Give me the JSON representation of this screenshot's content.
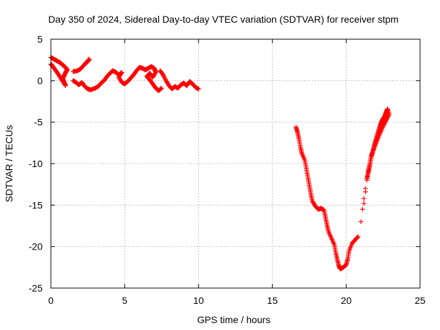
{
  "chart_data": {
    "type": "scatter",
    "title": "Day 350 of 2024, Sidereal Day-to-day VTEC variation (SDTVAR) for receiver stpm",
    "xlabel": "GPS time / hours",
    "ylabel": "SDTVAR / TECUs",
    "xlim": [
      0,
      25
    ],
    "ylim": [
      -25,
      5
    ],
    "xticks": [
      0,
      5,
      10,
      15,
      20,
      25
    ],
    "yticks": [
      -25,
      -20,
      -15,
      -10,
      -5,
      0,
      5
    ],
    "grid": true,
    "marker": "+",
    "colors": {
      "series": "#ff0000",
      "grid": "#a0a0a0",
      "axis": "#000000"
    },
    "series": [
      {
        "name": "SDTVAR",
        "points": [
          [
            0.0,
            2.8
          ],
          [
            0.2,
            2.6
          ],
          [
            0.4,
            2.4
          ],
          [
            0.6,
            2.2
          ],
          [
            0.8,
            1.9
          ],
          [
            1.0,
            1.6
          ],
          [
            1.1,
            1.3
          ],
          [
            1.0,
            1.0
          ],
          [
            0.9,
            0.6
          ],
          [
            0.8,
            0.3
          ],
          [
            0.9,
            -0.2
          ],
          [
            1.0,
            -0.6
          ],
          [
            0.9,
            -0.3
          ],
          [
            0.7,
            0.2
          ],
          [
            0.5,
            0.8
          ],
          [
            0.3,
            1.3
          ],
          [
            0.1,
            1.8
          ],
          [
            0.0,
            2.0
          ],
          [
            1.5,
            1.1
          ],
          [
            1.8,
            1.2
          ],
          [
            2.0,
            1.4
          ],
          [
            2.2,
            1.8
          ],
          [
            2.4,
            2.2
          ],
          [
            2.6,
            2.6
          ],
          [
            2.5,
            2.3
          ],
          [
            2.3,
            2.0
          ],
          [
            1.5,
            0.0
          ],
          [
            1.7,
            -0.2
          ],
          [
            1.9,
            -0.5
          ],
          [
            2.1,
            -0.2
          ],
          [
            2.3,
            -0.7
          ],
          [
            2.5,
            -1.0
          ],
          [
            2.7,
            -1.1
          ],
          [
            3.0,
            -0.9
          ],
          [
            3.2,
            -0.7
          ],
          [
            3.4,
            -0.3
          ],
          [
            3.6,
            0.0
          ],
          [
            3.8,
            0.5
          ],
          [
            4.0,
            0.9
          ],
          [
            4.2,
            1.2
          ],
          [
            4.4,
            1.0
          ],
          [
            4.6,
            0.7
          ],
          [
            4.8,
            1.0
          ],
          [
            4.6,
            0.4
          ],
          [
            4.8,
            -0.2
          ],
          [
            5.0,
            -0.4
          ],
          [
            5.2,
            -0.1
          ],
          [
            5.4,
            0.3
          ],
          [
            5.6,
            0.7
          ],
          [
            5.8,
            1.2
          ],
          [
            6.0,
            1.6
          ],
          [
            6.2,
            1.5
          ],
          [
            6.4,
            1.3
          ],
          [
            6.6,
            1.5
          ],
          [
            6.8,
            1.7
          ],
          [
            7.0,
            1.5
          ],
          [
            7.1,
            1.0
          ],
          [
            6.9,
            0.4
          ],
          [
            6.7,
            0.9
          ],
          [
            6.5,
            0.5
          ],
          [
            6.7,
            0.1
          ],
          [
            6.9,
            -0.4
          ],
          [
            7.1,
            -0.9
          ],
          [
            7.3,
            -1.2
          ],
          [
            7.5,
            -0.9
          ],
          [
            7.4,
            1.2
          ],
          [
            7.6,
            0.7
          ],
          [
            7.8,
            0.0
          ],
          [
            8.0,
            -0.6
          ],
          [
            8.2,
            -1.0
          ],
          [
            8.4,
            -0.7
          ],
          [
            8.6,
            -0.9
          ],
          [
            8.8,
            -0.5
          ],
          [
            9.0,
            -0.3
          ],
          [
            9.2,
            -0.6
          ],
          [
            9.4,
            -0.1
          ],
          [
            9.6,
            -0.4
          ],
          [
            9.8,
            -0.8
          ],
          [
            10.0,
            -1.0
          ],
          [
            16.6,
            -5.6
          ],
          [
            16.7,
            -6.2
          ],
          [
            16.8,
            -7.0
          ],
          [
            16.9,
            -8.0
          ],
          [
            17.0,
            -8.8
          ],
          [
            17.2,
            -9.6
          ],
          [
            17.3,
            -10.6
          ],
          [
            17.4,
            -11.6
          ],
          [
            17.5,
            -12.6
          ],
          [
            17.6,
            -13.6
          ],
          [
            17.7,
            -14.5
          ],
          [
            17.9,
            -15.1
          ],
          [
            18.1,
            -15.5
          ],
          [
            18.3,
            -15.4
          ],
          [
            18.5,
            -15.6
          ],
          [
            18.6,
            -16.5
          ],
          [
            18.7,
            -17.4
          ],
          [
            18.8,
            -18.2
          ],
          [
            19.0,
            -19.0
          ],
          [
            19.2,
            -19.8
          ],
          [
            19.3,
            -20.8
          ],
          [
            19.4,
            -21.6
          ],
          [
            19.5,
            -22.3
          ],
          [
            19.6,
            -22.7
          ],
          [
            19.8,
            -22.5
          ],
          [
            20.0,
            -22.2
          ],
          [
            20.1,
            -21.5
          ],
          [
            20.2,
            -20.5
          ],
          [
            20.4,
            -19.6
          ],
          [
            20.6,
            -19.2
          ],
          [
            20.8,
            -18.8
          ],
          [
            21.0,
            -17.0
          ],
          [
            21.1,
            -15.5
          ],
          [
            21.2,
            -14.2
          ],
          [
            21.3,
            -13.0
          ],
          [
            21.4,
            -11.8
          ],
          [
            21.5,
            -11.0
          ],
          [
            21.6,
            -10.2
          ],
          [
            21.7,
            -9.2
          ],
          [
            21.8,
            -8.5
          ],
          [
            21.9,
            -7.8
          ],
          [
            22.0,
            -7.2
          ],
          [
            22.1,
            -6.6
          ],
          [
            22.2,
            -6.0
          ],
          [
            22.3,
            -5.4
          ],
          [
            22.4,
            -4.9
          ],
          [
            22.5,
            -4.6
          ],
          [
            22.6,
            -4.3
          ],
          [
            22.7,
            -3.8
          ],
          [
            22.8,
            -3.4
          ],
          [
            22.9,
            -4.1
          ],
          [
            22.7,
            -4.8
          ],
          [
            22.5,
            -5.5
          ],
          [
            22.3,
            -6.3
          ],
          [
            22.1,
            -7.2
          ],
          [
            21.9,
            -8.1
          ],
          [
            21.7,
            -9.0
          ],
          [
            21.6,
            -10.0
          ],
          [
            21.5,
            -10.9
          ],
          [
            21.4,
            -12.0
          ],
          [
            21.3,
            -13.4
          ],
          [
            21.2,
            -14.8
          ]
        ]
      }
    ]
  }
}
